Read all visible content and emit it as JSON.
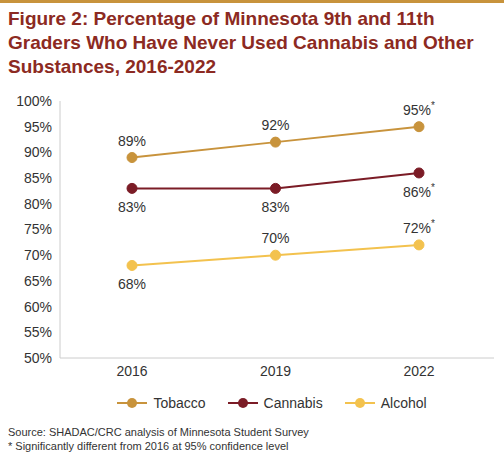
{
  "chart_data": {
    "type": "line",
    "title": "Figure 2: Percentage of Minnesota 9th and 11th Graders Who Have Never Used Cannabis and Other Substances, 2016-2022",
    "categories": [
      "2016",
      "2019",
      "2022"
    ],
    "series": [
      {
        "name": "Tobacco",
        "color": "#c8933c",
        "marker": "circle",
        "values": [
          89,
          92,
          95
        ],
        "value_labels": [
          "89%",
          "92%",
          "95%*"
        ]
      },
      {
        "name": "Cannabis",
        "color": "#7b1c26",
        "marker": "circle",
        "values": [
          83,
          83,
          86
        ],
        "value_labels": [
          "83%",
          "83%",
          "86%*"
        ]
      },
      {
        "name": "Alcohol",
        "color": "#f3c24e",
        "marker": "circle",
        "values": [
          68,
          70,
          72
        ],
        "value_labels": [
          "68%",
          "70%",
          "72%*"
        ]
      }
    ],
    "ylim": [
      50,
      100
    ],
    "yticks": [
      {
        "value": 50,
        "label": "50%"
      },
      {
        "value": 55,
        "label": "55%"
      },
      {
        "value": 60,
        "label": "60%"
      },
      {
        "value": 65,
        "label": "65%"
      },
      {
        "value": 70,
        "label": "70%"
      },
      {
        "value": 75,
        "label": "75%"
      },
      {
        "value": 80,
        "label": "80%"
      },
      {
        "value": 85,
        "label": "85%"
      },
      {
        "value": 90,
        "label": "90%"
      },
      {
        "value": 95,
        "label": "95%"
      },
      {
        "value": 100,
        "label": "100%"
      }
    ],
    "grid": false,
    "legend": "bottom",
    "data_labels": true,
    "source": "Source: SHADAC/CRC analysis of Minnesota Student Survey",
    "note": "* Significantly different from 2016 at 95% confidence level"
  }
}
